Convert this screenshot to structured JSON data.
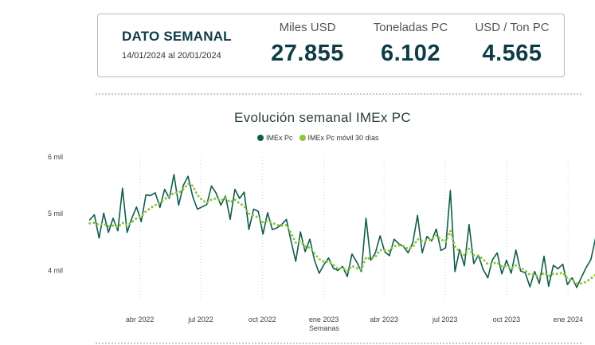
{
  "card": {
    "title": "DATO SEMANAL",
    "date_range": "14/01/2024 al 20/01/2024",
    "kpis": [
      {
        "label": "Miles USD",
        "value": "27.855"
      },
      {
        "label": "Toneladas PC",
        "value": "6.102"
      },
      {
        "label": "USD / Ton PC",
        "value": "4.565"
      }
    ]
  },
  "chart_data": {
    "type": "line",
    "title": "Evolución semanal IMEx PC",
    "xlabel": "Semanas",
    "ylabel": "",
    "yticks": [
      "4 mil",
      "5 mil",
      "6 mil"
    ],
    "ytick_values": [
      4000,
      5000,
      6000
    ],
    "ylim": [
      3500,
      6000
    ],
    "xlim": [
      "2022-01-01",
      "2024-01-21"
    ],
    "xticks": [
      {
        "label": "abr 2022",
        "date": "2022-04-01"
      },
      {
        "label": "jul 2022",
        "date": "2022-07-01"
      },
      {
        "label": "oct 2022",
        "date": "2022-10-01"
      },
      {
        "label": "ene 2023",
        "date": "2023-01-01"
      },
      {
        "label": "abr 2023",
        "date": "2023-04-01"
      },
      {
        "label": "jul 2023",
        "date": "2023-07-01"
      },
      {
        "label": "oct 2023",
        "date": "2023-10-01"
      },
      {
        "label": "ene 2024",
        "date": "2024-01-01"
      }
    ],
    "grid": "vertical dotted",
    "legend_position": "top",
    "colors": {
      "IMEx Pc": "#0f5c4c",
      "IMEx Pc móvil 30 días": "#8cc63f"
    },
    "series": [
      {
        "name": "IMEx Pc",
        "style": "solid",
        "values": [
          4890,
          4980,
          4570,
          5010,
          4670,
          4920,
          4700,
          5450,
          4670,
          4920,
          5120,
          4860,
          5330,
          5320,
          5370,
          5110,
          5430,
          5270,
          5690,
          5150,
          5500,
          5660,
          5300,
          5080,
          5120,
          5160,
          5490,
          5360,
          5150,
          5310,
          4900,
          5430,
          5270,
          5380,
          4720,
          5080,
          5040,
          4640,
          5020,
          4720,
          4750,
          4810,
          4900,
          4520,
          4160,
          4680,
          4330,
          4550,
          4180,
          3950,
          4100,
          4220,
          4040,
          4000,
          4070,
          3890,
          4290,
          4150,
          3980,
          4920,
          4180,
          4310,
          4610,
          4330,
          4260,
          4550,
          4470,
          4420,
          4310,
          4490,
          4970,
          4310,
          4600,
          4520,
          4730,
          4350,
          4400,
          5410,
          3980,
          4370,
          4080,
          4810,
          4120,
          4270,
          4020,
          3870,
          4190,
          4310,
          3940,
          4180,
          3950,
          4360,
          3990,
          3960,
          3710,
          3980,
          3770,
          4250,
          3720,
          4090,
          4030,
          4110,
          3750,
          3870,
          3700,
          3880,
          4050,
          4190,
          4565
        ]
      },
      {
        "name": "IMEx Pc móvil 30 días",
        "style": "dotted",
        "values": [
          4830,
          4840,
          4800,
          4820,
          4780,
          4790,
          4760,
          4840,
          4790,
          4850,
          4920,
          4950,
          5040,
          5100,
          5150,
          5190,
          5260,
          5300,
          5370,
          5370,
          5430,
          5530,
          5490,
          5330,
          5240,
          5190,
          5250,
          5270,
          5230,
          5280,
          5200,
          5250,
          5180,
          5140,
          5000,
          4970,
          4930,
          4850,
          4870,
          4840,
          4800,
          4790,
          4800,
          4660,
          4490,
          4520,
          4420,
          4400,
          4300,
          4200,
          4150,
          4160,
          4100,
          4030,
          4050,
          3990,
          4080,
          4040,
          4020,
          4230,
          4200,
          4240,
          4360,
          4350,
          4350,
          4430,
          4440,
          4430,
          4380,
          4410,
          4550,
          4520,
          4530,
          4540,
          4620,
          4550,
          4500,
          4700,
          4420,
          4330,
          4270,
          4380,
          4270,
          4260,
          4200,
          4110,
          4120,
          4140,
          4070,
          4080,
          4030,
          4090,
          4040,
          4000,
          3920,
          3930,
          3880,
          3960,
          3900,
          3940,
          3940,
          3960,
          3860,
          3830,
          3770,
          3770,
          3800,
          3860,
          3920
        ]
      }
    ]
  }
}
